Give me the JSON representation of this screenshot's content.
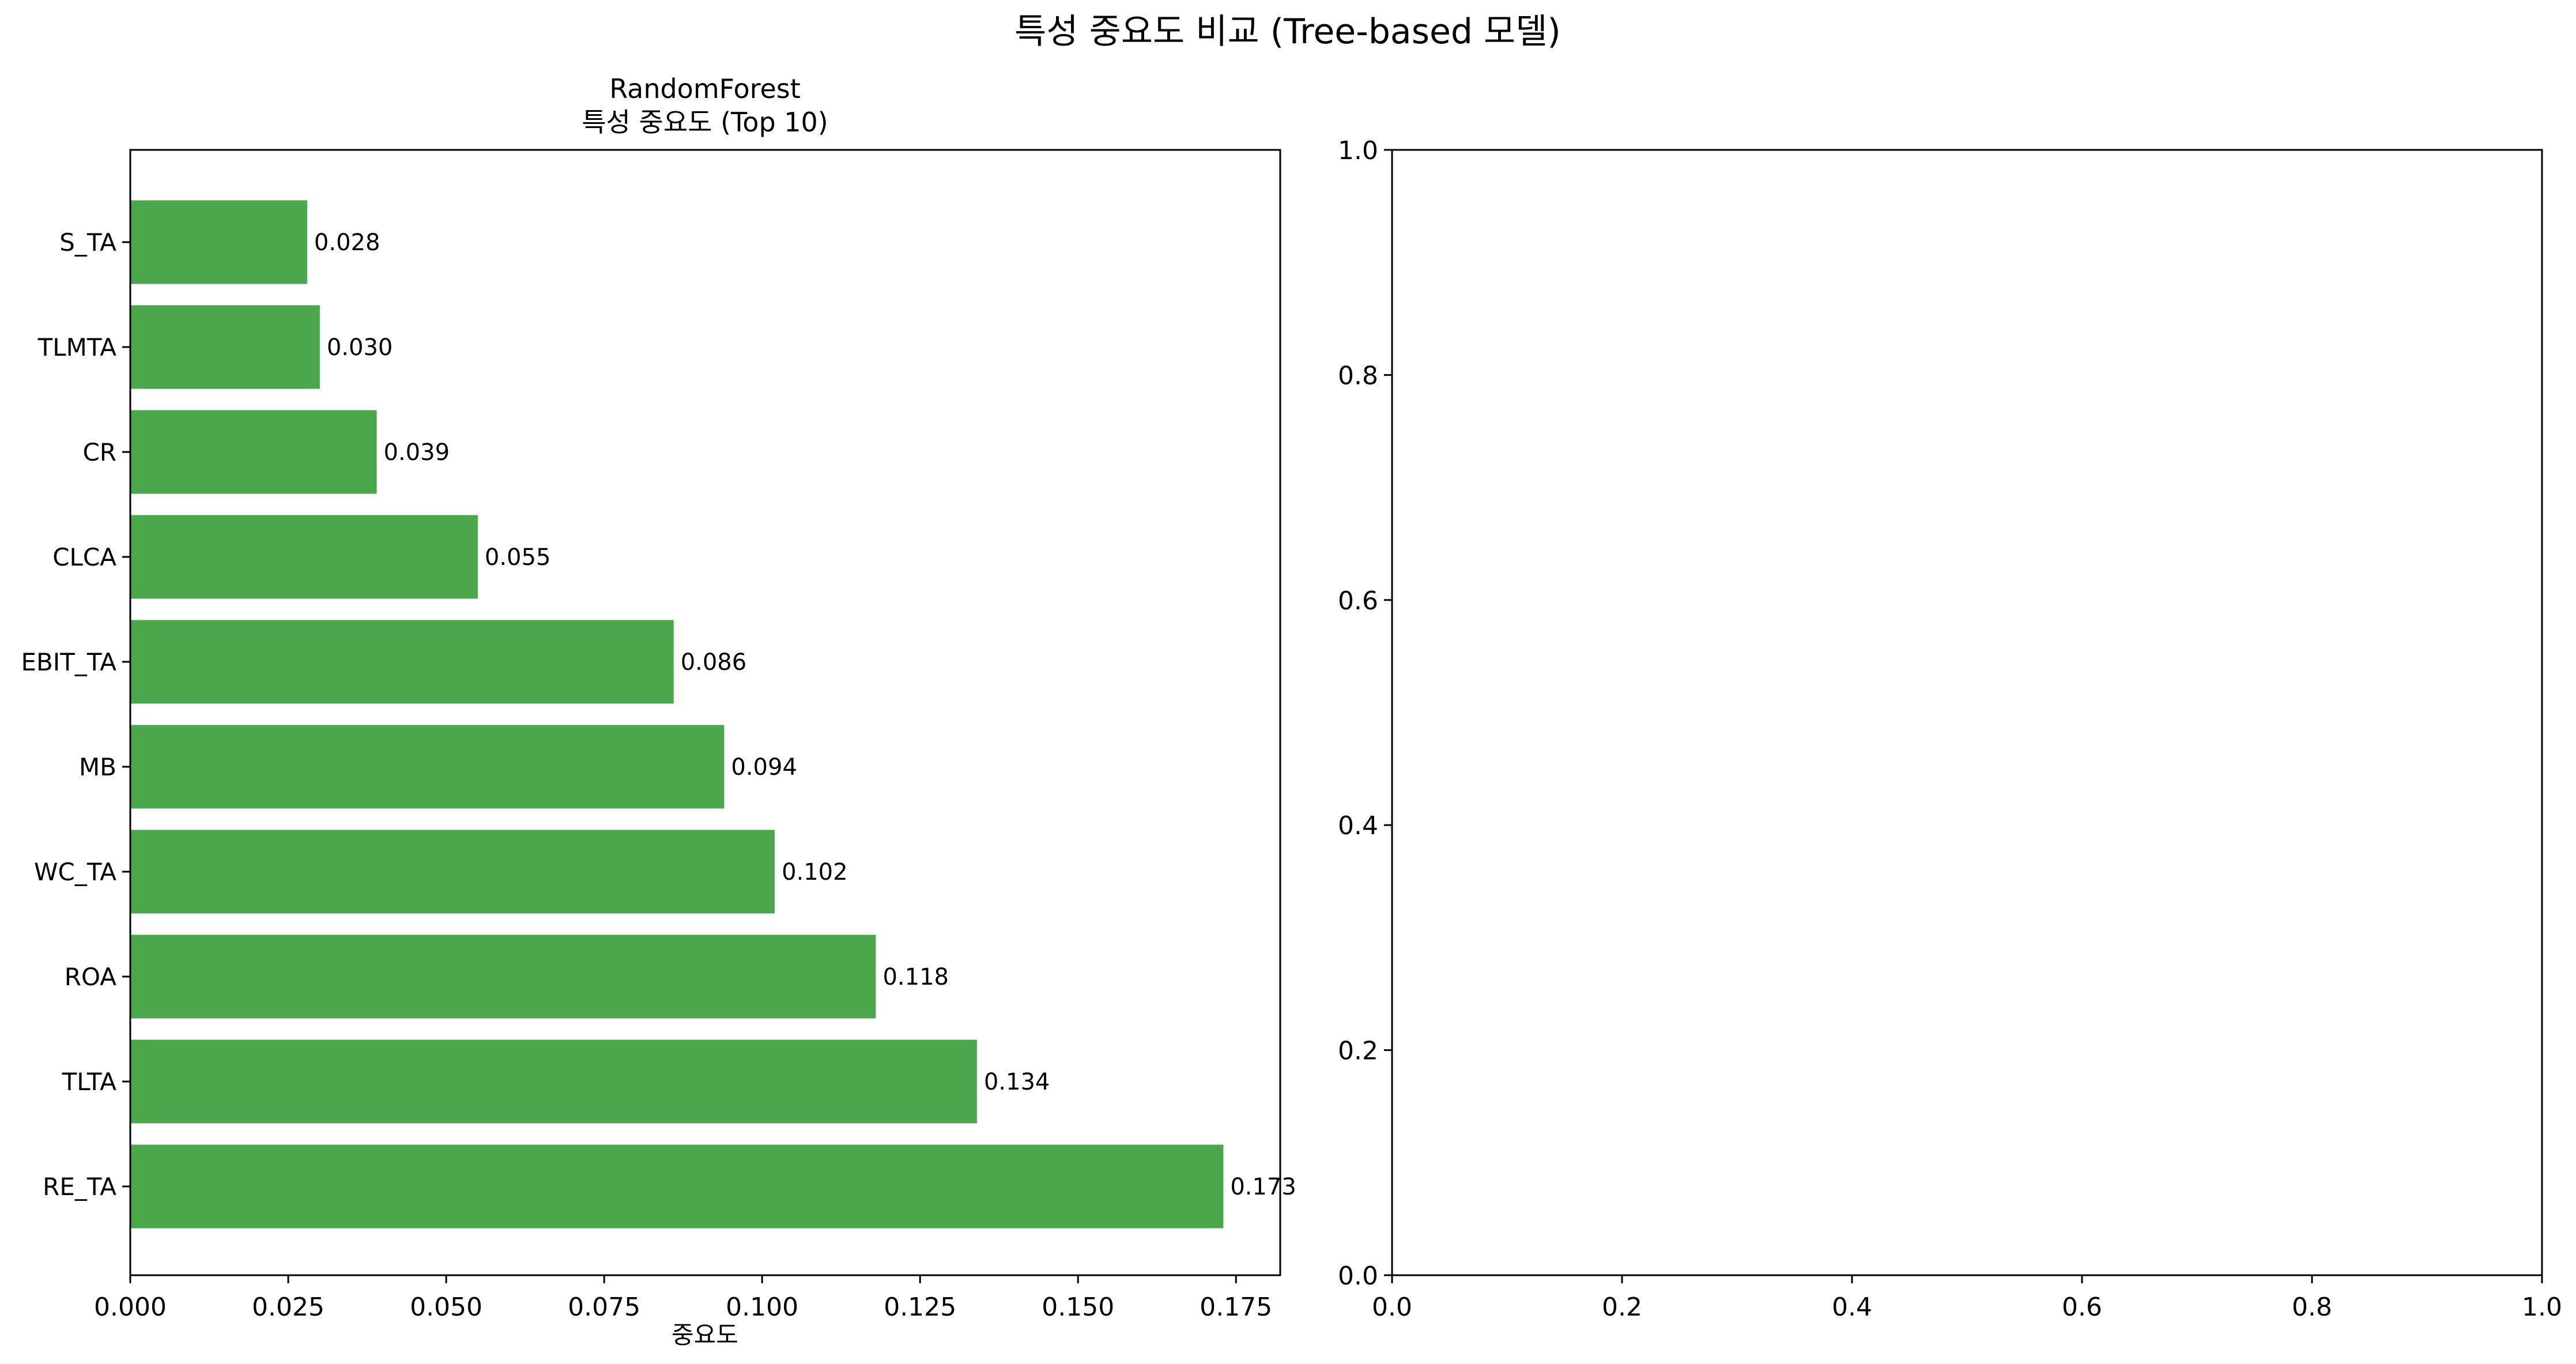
{
  "figure": {
    "suptitle": "특성 중요도 비교 (Tree-based 모델)"
  },
  "colors": {
    "bar": "#4ca64c",
    "axis": "#000000",
    "background": "#ffffff"
  },
  "chart_data": [
    {
      "type": "bar",
      "orientation": "horizontal",
      "title": "RandomForest\n특성 중요도 (Top 10)",
      "xlabel": "중요도",
      "ylabel": "",
      "categories": [
        "S_TA",
        "TLMTA",
        "CR",
        "CLCA",
        "EBIT_TA",
        "MB",
        "WC_TA",
        "ROA",
        "TLTA",
        "RE_TA"
      ],
      "values": [
        0.028,
        0.03,
        0.039,
        0.055,
        0.086,
        0.094,
        0.102,
        0.118,
        0.134,
        0.173
      ],
      "data_labels": [
        "0.028",
        "0.030",
        "0.039",
        "0.055",
        "0.086",
        "0.094",
        "0.102",
        "0.118",
        "0.134",
        "0.173"
      ],
      "xlim": [
        0,
        0.182
      ],
      "xticks": [
        0.0,
        0.025,
        0.05,
        0.075,
        0.1,
        0.125,
        0.15,
        0.175
      ],
      "xtick_labels": [
        "0.000",
        "0.025",
        "0.050",
        "0.075",
        "0.100",
        "0.125",
        "0.150",
        "0.175"
      ],
      "grid": false
    },
    {
      "type": "empty",
      "title": "",
      "xlim": [
        0,
        1
      ],
      "ylim": [
        0,
        1
      ],
      "xticks": [
        0.0,
        0.2,
        0.4,
        0.6,
        0.8,
        1.0
      ],
      "xtick_labels": [
        "0.0",
        "0.2",
        "0.4",
        "0.6",
        "0.8",
        "1.0"
      ],
      "yticks": [
        0.0,
        0.2,
        0.4,
        0.6,
        0.8,
        1.0
      ],
      "ytick_labels": [
        "0.0",
        "0.2",
        "0.4",
        "0.6",
        "0.8",
        "1.0"
      ],
      "grid": false
    }
  ]
}
